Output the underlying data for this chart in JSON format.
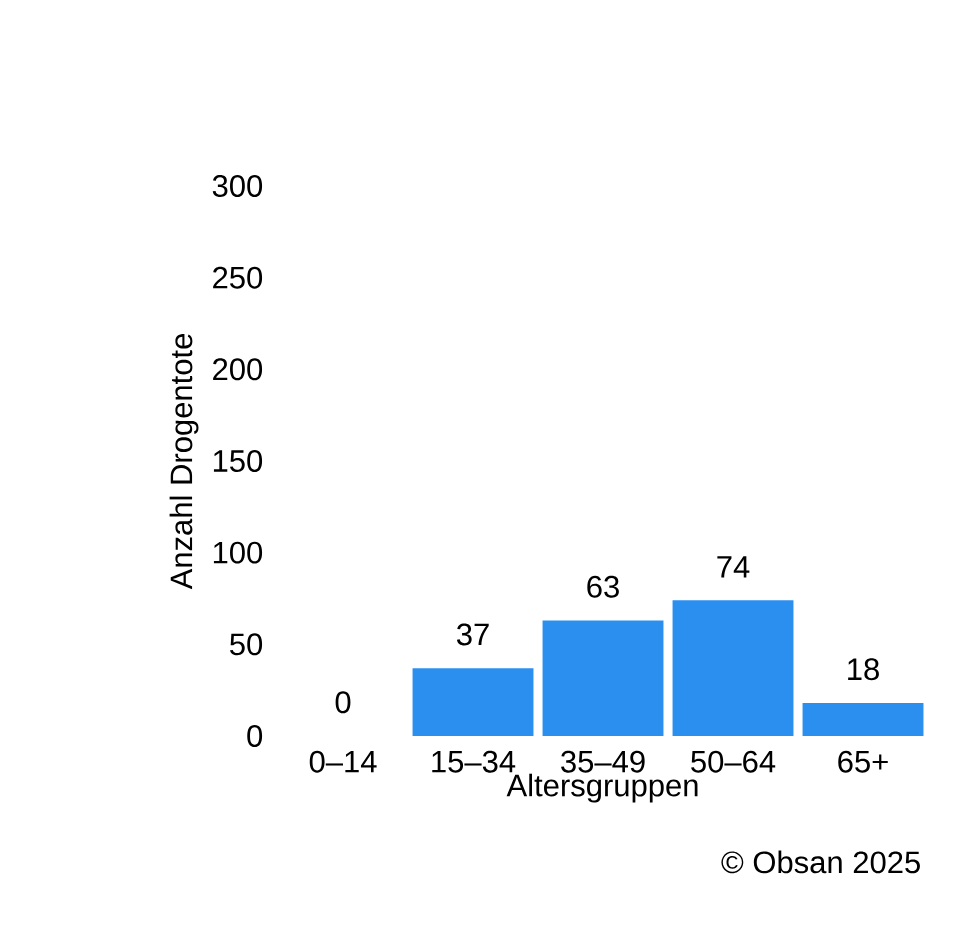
{
  "chart_data": {
    "type": "bar",
    "xlabel": "Altersgruppen",
    "ylabel": "Anzahl Drogentote",
    "categories": [
      "0–14",
      "15–34",
      "35–49",
      "50–64",
      "65+"
    ],
    "values": [
      0,
      37,
      63,
      74,
      18
    ],
    "color": "#2b8ff0",
    "ylim": [
      0,
      300
    ],
    "yticks": [
      0,
      50,
      100,
      150,
      200,
      250,
      300
    ],
    "data_labels": true,
    "annotations": [
      "© Obsan 2025"
    ]
  }
}
